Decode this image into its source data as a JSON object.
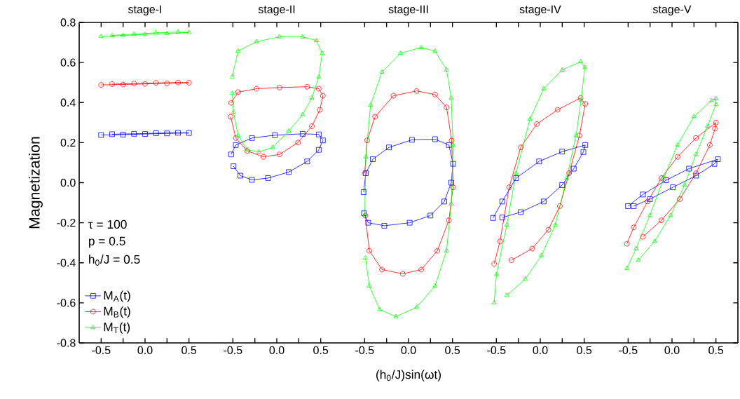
{
  "chart_data": [
    {
      "type": "line",
      "title": "stage-I",
      "ylabel": "Magnetization",
      "xlim": [
        -0.75,
        0.75
      ],
      "ylim": [
        -0.8,
        0.8
      ],
      "xticks": [
        {
          "value": -0.5,
          "label": "-0.5"
        },
        {
          "value": -0.25,
          "label": null
        },
        {
          "value": 0,
          "label": "0.0"
        },
        {
          "value": 0.25,
          "label": null
        },
        {
          "value": 0.5,
          "label": "0.5"
        }
      ],
      "yticks": [
        {
          "value": -0.8,
          "label": "-0.8"
        },
        {
          "value": -0.6,
          "label": "-0.6"
        },
        {
          "value": -0.4,
          "label": "-0.4"
        },
        {
          "value": -0.2,
          "label": "-0.2"
        },
        {
          "value": 0,
          "label": "0.0"
        },
        {
          "value": 0.2,
          "label": "0.2"
        },
        {
          "value": 0.4,
          "label": "0.4"
        },
        {
          "value": 0.6,
          "label": "0.6"
        },
        {
          "value": 0.8,
          "label": "0.8"
        }
      ],
      "annotations": [
        "τ = 100",
        "p = 0.5",
        "h$_{0}$/J = 0.5"
      ],
      "legend": "bottom left",
      "series": [
        {
          "name": "M$_{A}$(t)",
          "color": "#0000ff",
          "marker": "square",
          "x": [
            -0.5,
            -0.25,
            0,
            0.25,
            0.5,
            0.375,
            0.125,
            -0.125,
            -0.375
          ],
          "values": [
            0.238,
            0.24,
            0.243,
            0.246,
            0.248,
            0.249,
            0.247,
            0.244,
            0.242
          ]
        },
        {
          "name": "M$_{B}$(t)",
          "color": "#ff0000",
          "marker": "circle",
          "x": [
            -0.5,
            -0.25,
            0,
            0.25,
            0.5,
            0.375,
            0.125,
            -0.125,
            -0.375
          ],
          "values": [
            0.488,
            0.49,
            0.493,
            0.496,
            0.499,
            0.5,
            0.498,
            0.495,
            0.492
          ]
        },
        {
          "name": "M$_{T}$(t)",
          "color": "#00ff00",
          "marker": "triangle",
          "x": [
            -0.5,
            -0.25,
            0,
            0.25,
            0.5,
            0.375,
            0.125,
            -0.125,
            -0.375
          ],
          "values": [
            0.73,
            0.735,
            0.74,
            0.745,
            0.75,
            0.752,
            0.748,
            0.742,
            0.735
          ]
        }
      ]
    },
    {
      "type": "line",
      "title": "stage-II",
      "xlim": [
        -0.75,
        0.75
      ],
      "ylim": [
        -0.8,
        0.8
      ],
      "tick_labels": "x",
      "xticks": [
        {
          "value": -0.5,
          "label": "-0.5"
        },
        {
          "value": -0.25,
          "label": null
        },
        {
          "value": 0,
          "label": "0.0"
        },
        {
          "value": 0.25,
          "label": null
        },
        {
          "value": 0.5,
          "label": "0.5"
        }
      ],
      "series": [
        {
          "color": "#0000ff",
          "marker": "square",
          "x": [
            -0.52,
            -0.467,
            -0.283,
            -0.021,
            0.294,
            0.478,
            0.525,
            0.478,
            0.346,
            0.136,
            -0.1,
            -0.283,
            -0.415,
            -0.493
          ],
          "values": [
            0.141,
            0.188,
            0.223,
            0.237,
            0.244,
            0.241,
            0.211,
            0.164,
            0.106,
            0.053,
            0.023,
            0.014,
            0.035,
            0.082
          ]
        },
        {
          "color": "#ff0000",
          "marker": "circle",
          "x": [
            -0.52,
            -0.441,
            -0.231,
            0.031,
            0.346,
            0.478,
            0.525,
            0.491,
            0.399,
            0.241,
            0.031,
            -0.152,
            -0.336,
            -0.467,
            -0.525
          ],
          "values": [
            0.399,
            0.452,
            0.469,
            0.475,
            0.479,
            0.469,
            0.434,
            0.364,
            0.282,
            0.2,
            0.141,
            0.129,
            0.158,
            0.223,
            0.329
          ]
        },
        {
          "color": "#00ff00",
          "marker": "triangle",
          "x": [
            -0.507,
            -0.441,
            -0.231,
            0.031,
            0.294,
            0.451,
            0.517,
            0.478,
            0.399,
            0.294,
            0.136,
            -0.047,
            -0.205,
            -0.336,
            -0.441,
            -0.493,
            -0.507
          ],
          "values": [
            0.528,
            0.657,
            0.704,
            0.728,
            0.728,
            0.71,
            0.646,
            0.528,
            0.423,
            0.34,
            0.258,
            0.176,
            0.153,
            0.164,
            0.235,
            0.352,
            0.446
          ]
        }
      ]
    },
    {
      "type": "line",
      "title": "stage-III",
      "xlabel": "(h$_{0}$/J)sin(ωt)",
      "xlim": [
        -0.75,
        0.75
      ],
      "ylim": [
        -0.8,
        0.8
      ],
      "tick_labels": "x",
      "xticks": [
        {
          "value": -0.5,
          "label": "-0.5"
        },
        {
          "value": -0.25,
          "label": null
        },
        {
          "value": 0,
          "label": "0.0"
        },
        {
          "value": 0.25,
          "label": null
        },
        {
          "value": 0.5,
          "label": "0.5"
        }
      ],
      "series": [
        {
          "color": "#0000ff",
          "marker": "square",
          "x": [
            -0.512,
            -0.486,
            -0.407,
            -0.223,
            0.039,
            0.302,
            0.459,
            0.507,
            0.486,
            0.407,
            0.249,
            0.013,
            -0.276,
            -0.459,
            -0.507
          ],
          "values": [
            -0.047,
            0.047,
            0.117,
            0.176,
            0.214,
            0.217,
            0.188,
            0.094,
            0.0,
            -0.094,
            -0.164,
            -0.2,
            -0.215,
            -0.2,
            -0.153
          ]
        },
        {
          "color": "#ff0000",
          "marker": "circle",
          "x": [
            -0.499,
            -0.472,
            -0.381,
            -0.171,
            0.092,
            0.302,
            0.433,
            0.491,
            0.507,
            0.459,
            0.328,
            0.144,
            -0.066,
            -0.302,
            -0.446,
            -0.493
          ],
          "values": [
            0.047,
            0.211,
            0.329,
            0.434,
            0.458,
            0.44,
            0.376,
            0.211,
            -0.023,
            -0.188,
            -0.34,
            -0.434,
            -0.455,
            -0.434,
            -0.34,
            -0.164
          ]
        },
        {
          "color": "#00ff00",
          "marker": "triangle",
          "x": [
            -0.499,
            -0.486,
            -0.433,
            -0.302,
            -0.092,
            0.144,
            0.302,
            0.433,
            0.486,
            0.507,
            0.486,
            0.433,
            0.302,
            0.092,
            -0.144,
            -0.328,
            -0.446,
            -0.491
          ],
          "values": [
            -0.164,
            0.129,
            0.387,
            0.552,
            0.646,
            0.675,
            0.657,
            0.563,
            0.423,
            0.188,
            -0.106,
            -0.34,
            -0.516,
            -0.622,
            -0.669,
            -0.634,
            -0.516,
            -0.376
          ]
        }
      ]
    },
    {
      "type": "line",
      "title": "stage-IV",
      "xlim": [
        -0.75,
        0.75
      ],
      "ylim": [
        -0.8,
        0.8
      ],
      "tick_labels": "x",
      "xticks": [
        {
          "value": -0.5,
          "label": "-0.5"
        },
        {
          "value": -0.25,
          "label": null
        },
        {
          "value": 0,
          "label": "0.0"
        },
        {
          "value": 0.25,
          "label": null
        },
        {
          "value": 0.5,
          "label": "0.5"
        }
      ],
      "series": [
        {
          "color": "#0000ff",
          "marker": "square",
          "x": [
            -0.538,
            -0.433,
            -0.276,
            -0.013,
            0.249,
            0.512,
            0.491,
            0.381,
            0.249,
            0.039,
            -0.223,
            -0.433
          ],
          "values": [
            -0.176,
            -0.094,
            0.023,
            0.106,
            0.155,
            0.188,
            0.153,
            0.07,
            -0.012,
            -0.094,
            -0.147,
            -0.174
          ]
        },
        {
          "color": "#ff0000",
          "marker": "circle",
          "x": [
            -0.525,
            -0.459,
            -0.354,
            -0.223,
            -0.039,
            0.197,
            0.459,
            0.512,
            0.446,
            0.328,
            0.223,
            0.092,
            -0.092,
            -0.328
          ],
          "values": [
            -0.405,
            -0.293,
            -0.023,
            0.176,
            0.293,
            0.364,
            0.423,
            0.393,
            0.235,
            0.047,
            -0.117,
            -0.235,
            -0.329,
            -0.387
          ]
        },
        {
          "color": "#00ff00",
          "marker": "triangle",
          "x": [
            -0.525,
            -0.499,
            -0.381,
            -0.276,
            -0.118,
            0.039,
            0.249,
            0.459,
            0.507,
            0.465,
            0.407,
            0.302,
            0.171,
            0.013,
            -0.171,
            -0.381
          ],
          "values": [
            -0.599,
            -0.458,
            -0.211,
            0.047,
            0.317,
            0.469,
            0.563,
            0.604,
            0.575,
            0.411,
            0.235,
            0.023,
            -0.211,
            -0.364,
            -0.481,
            -0.563
          ]
        }
      ]
    },
    {
      "type": "line",
      "title": "stage-V",
      "xlim": [
        -0.75,
        0.75
      ],
      "ylim": [
        -0.8,
        0.8
      ],
      "tick_labels": "x",
      "xticks": [
        {
          "value": -0.5,
          "label": "-0.5"
        },
        {
          "value": -0.25,
          "label": null
        },
        {
          "value": 0,
          "label": "0.0"
        },
        {
          "value": 0.25,
          "label": null
        },
        {
          "value": 0.5,
          "label": "0.5"
        }
      ],
      "yticks": [
        -0.8,
        -0.6,
        -0.4,
        -0.2,
        0,
        0.2,
        0.4,
        0.6,
        0.8
      ],
      "series": [
        {
          "color": "#0000ff",
          "marker": "square",
          "x": [
            -0.501,
            -0.331,
            -0.068,
            0.194,
            0.522,
            0.483,
            0.273,
            0.01,
            -0.252,
            -0.436
          ],
          "values": [
            -0.117,
            -0.059,
            0.012,
            0.07,
            0.117,
            0.094,
            0.035,
            -0.023,
            -0.082,
            -0.117
          ]
        },
        {
          "color": "#ff0000",
          "marker": "circle",
          "x": [
            -0.514,
            -0.436,
            -0.278,
            -0.121,
            0.063,
            0.273,
            0.5,
            0.49,
            0.43,
            0.273,
            0.089,
            -0.121,
            -0.331
          ],
          "values": [
            -0.305,
            -0.223,
            -0.094,
            0.023,
            0.129,
            0.223,
            0.3,
            0.27,
            0.188,
            0.047,
            -0.082,
            -0.188,
            -0.27
          ]
        },
        {
          "color": "#00ff00",
          "marker": "triangle",
          "x": [
            -0.514,
            -0.409,
            -0.252,
            -0.094,
            0.063,
            0.25,
            0.45,
            0.5,
            0.5,
            0.404,
            0.273,
            0.142,
            -0.016,
            -0.199,
            -0.383
          ],
          "values": [
            -0.428,
            -0.329,
            -0.164,
            0.023,
            0.188,
            0.33,
            0.41,
            0.42,
            0.39,
            0.282,
            0.141,
            -0.012,
            -0.164,
            -0.293,
            -0.387
          ]
        }
      ]
    }
  ]
}
